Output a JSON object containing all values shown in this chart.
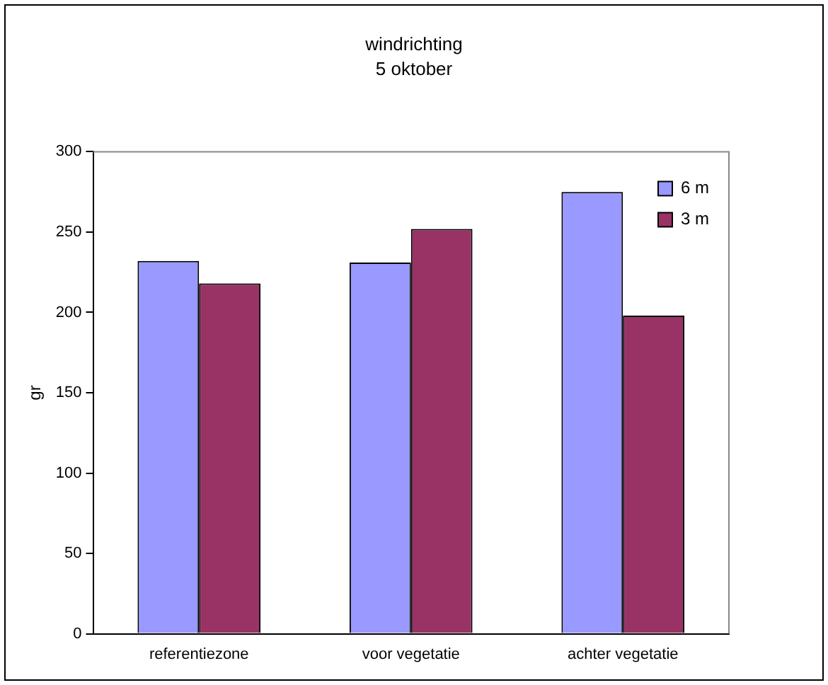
{
  "chart_data": {
    "type": "bar",
    "title": "windrichting",
    "subtitle": "5 oktober",
    "ylabel": "gr",
    "categories": [
      "referentiezone",
      "voor vegetatie",
      "achter vegetatie"
    ],
    "series": [
      {
        "name": "6 m",
        "color": "#9999ff",
        "values": [
          232,
          231,
          275
        ]
      },
      {
        "name": "3 m",
        "color": "#993366",
        "values": [
          218,
          252,
          198
        ]
      }
    ],
    "ylim": [
      0,
      300
    ],
    "yticks": [
      0,
      50,
      100,
      150,
      200,
      250,
      300
    ],
    "grid": false,
    "legend": "top right"
  }
}
